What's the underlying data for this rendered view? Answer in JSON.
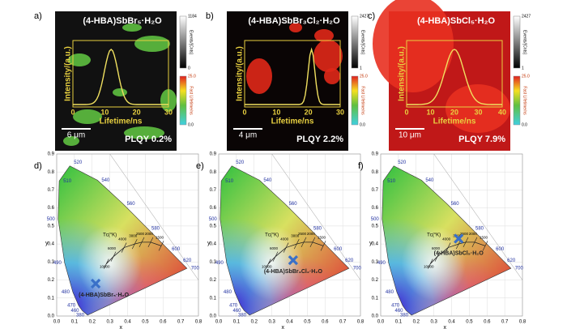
{
  "panels": [
    {
      "label": "a)",
      "title": "(4-HBA)SbBr₅·H₂O",
      "events_max": "1184",
      "events_min": "0",
      "events_label": "Events/[Cnts]",
      "life_max": "25.0",
      "life_min": "0.0",
      "life_label": "Fast Lifetime/ns",
      "ylabel": "Intensity/(a.u.)",
      "xlabel": "Lifetime/ns",
      "xticks": [
        "0",
        "10",
        "20",
        "30"
      ],
      "scale": "6 μm",
      "plqy": "PLQY 0.2%"
    },
    {
      "label": "b)",
      "title": "(4-HBA)SbBr₃Cl₂·H₂O",
      "events_max": "2427",
      "events_min": "1",
      "events_label": "Events/[Cnts]",
      "life_max": "25.0",
      "life_min": "0.0",
      "life_label": "Fast Lifetime/ns",
      "ylabel": "Intensity/(a.u.)",
      "xlabel": "Lifetime/ns",
      "xticks": [
        "0",
        "10",
        "20",
        "30"
      ],
      "scale": "4 μm",
      "plqy": "PLQY 2.2%"
    },
    {
      "label": "c)",
      "title": "(4-HBA)SbCl₅·H₂O",
      "events_max": "2427",
      "events_min": "1",
      "events_label": "Events/[Cnts]",
      "life_max": "25.0",
      "life_min": "0.0",
      "life_label": "Fast Lifetime/ns",
      "ylabel": "Intensity/(a.u.)",
      "xlabel": "Lifetime/ns",
      "xticks": [
        "0",
        "10",
        "20",
        "30",
        "40"
      ],
      "scale": "10 μm",
      "plqy": "PLQY 7.9%"
    }
  ],
  "cie": [
    {
      "label": "d)",
      "compound": "(4-HBA)SbBr₅·H₂O",
      "point": [
        0.22,
        0.18
      ]
    },
    {
      "label": "e)",
      "compound": "(4-HBA)SbBr₃Cl₂·H₂O",
      "point": [
        0.42,
        0.31
      ]
    },
    {
      "label": "f)",
      "compound": "(4-HBA)SbCl₅·H₂O",
      "point": [
        0.44,
        0.43
      ]
    }
  ],
  "cie_axes": {
    "xlabel": "x",
    "ylabel": "y",
    "xticks": [
      "0.0",
      "0.1",
      "0.2",
      "0.3",
      "0.4",
      "0.5",
      "0.6",
      "0.7",
      "0.8"
    ],
    "yticks": [
      "0.0",
      "0.1",
      "0.2",
      "0.3",
      "0.4",
      "0.5",
      "0.6",
      "0.7",
      "0.8",
      "0.9"
    ],
    "wavelengths": [
      "380",
      "460",
      "470",
      "480",
      "490",
      "500",
      "510",
      "520",
      "540",
      "560",
      "580",
      "600",
      "620",
      "700"
    ],
    "tc_label": "Tᴄ(°K)",
    "cct": [
      "10000",
      "6000",
      "4000",
      "3000",
      "2500",
      "2000",
      "1500"
    ]
  }
}
